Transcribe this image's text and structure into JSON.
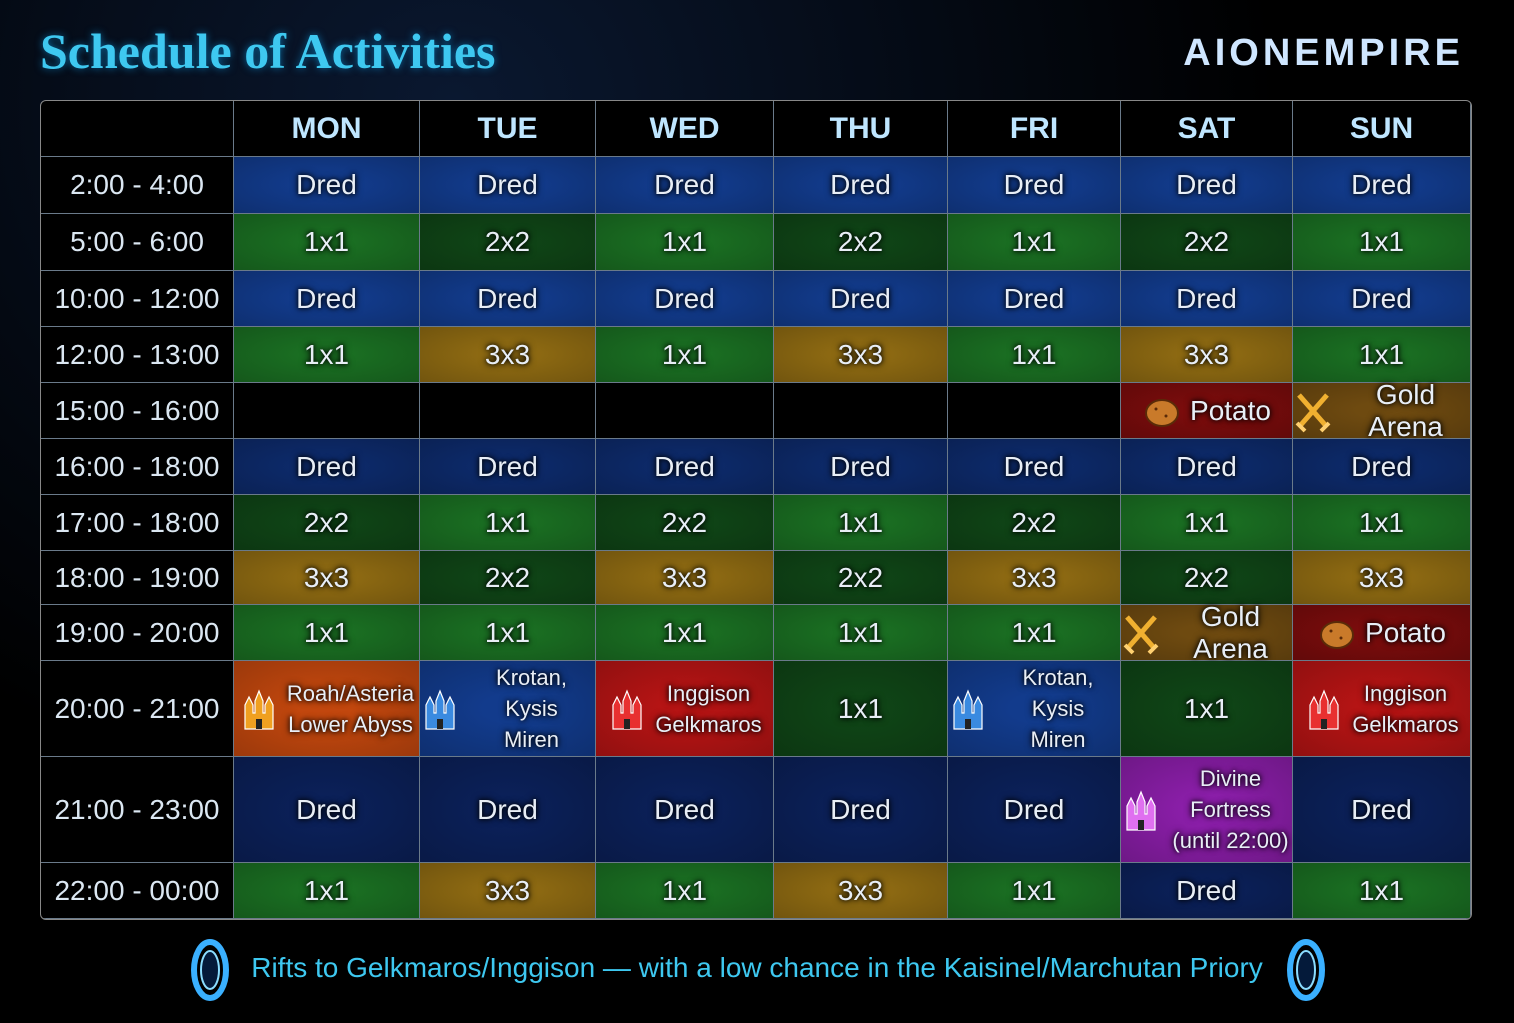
{
  "header": {
    "title": "Schedule of Activities",
    "logo": "AIONEMPIRE"
  },
  "table": {
    "days": [
      "MON",
      "TUE",
      "WED",
      "THU",
      "FRI",
      "SAT",
      "SUN"
    ],
    "rows": [
      {
        "time": "2:00 - 4:00",
        "cells": [
          {
            "text": "Dred",
            "color": "#123b8c"
          },
          {
            "text": "Dred",
            "color": "#123b8c"
          },
          {
            "text": "Dred",
            "color": "#123b8c"
          },
          {
            "text": "Dred",
            "color": "#123b8c"
          },
          {
            "text": "Dred",
            "color": "#123b8c"
          },
          {
            "text": "Dred",
            "color": "#123b8c"
          },
          {
            "text": "Dred",
            "color": "#123b8c"
          }
        ]
      },
      {
        "time": "5:00 - 6:00",
        "cells": [
          {
            "text": "1x1",
            "color": "#1a6e22"
          },
          {
            "text": "2x2",
            "color": "#0f4416"
          },
          {
            "text": "1x1",
            "color": "#1a6e22"
          },
          {
            "text": "2x2",
            "color": "#0f4416"
          },
          {
            "text": "1x1",
            "color": "#1a6e22"
          },
          {
            "text": "2x2",
            "color": "#0f4416"
          },
          {
            "text": "1x1",
            "color": "#1a6e22"
          }
        ]
      },
      {
        "time": "10:00 - 12:00",
        "cells": [
          {
            "text": "Dred",
            "color": "#123b8c"
          },
          {
            "text": "Dred",
            "color": "#123b8c"
          },
          {
            "text": "Dred",
            "color": "#123b8c"
          },
          {
            "text": "Dred",
            "color": "#123b8c"
          },
          {
            "text": "Dred",
            "color": "#123b8c"
          },
          {
            "text": "Dred",
            "color": "#123b8c"
          },
          {
            "text": "Dred",
            "color": "#123b8c"
          }
        ]
      },
      {
        "time": "12:00 - 13:00",
        "cells": [
          {
            "text": "1x1",
            "color": "#1a6e22"
          },
          {
            "text": "3x3",
            "color": "#8e6a12"
          },
          {
            "text": "1x1",
            "color": "#1a6e22"
          },
          {
            "text": "3x3",
            "color": "#8e6a12"
          },
          {
            "text": "1x1",
            "color": "#1a6e22"
          },
          {
            "text": "3x3",
            "color": "#8e6a12"
          },
          {
            "text": "1x1",
            "color": "#1a6e22"
          }
        ]
      },
      {
        "time": "15:00 - 16:00",
        "cells": [
          {
            "color": "#000000"
          },
          {
            "color": "#000000"
          },
          {
            "color": "#000000"
          },
          {
            "color": "#000000"
          },
          {
            "color": "#000000"
          },
          {
            "text": "Potato",
            "color": "#7a0c0c",
            "icon": "potato"
          },
          {
            "text": "Gold Arena",
            "color": "#6e4a10",
            "icon": "swords"
          }
        ]
      },
      {
        "time": "16:00 - 18:00",
        "cells": [
          {
            "text": "Dred",
            "color": "#0d2a6a"
          },
          {
            "text": "Dred",
            "color": "#0d2a6a"
          },
          {
            "text": "Dred",
            "color": "#0d2a6a"
          },
          {
            "text": "Dred",
            "color": "#0d2a6a"
          },
          {
            "text": "Dred",
            "color": "#0d2a6a"
          },
          {
            "text": "Dred",
            "color": "#0d2a6a"
          },
          {
            "text": "Dred",
            "color": "#0d2a6a"
          }
        ]
      },
      {
        "time": "17:00 - 18:00",
        "cells": [
          {
            "text": "2x2",
            "color": "#0f4416"
          },
          {
            "text": "1x1",
            "color": "#1a6e22"
          },
          {
            "text": "2x2",
            "color": "#0f4416"
          },
          {
            "text": "1x1",
            "color": "#1a6e22"
          },
          {
            "text": "2x2",
            "color": "#0f4416"
          },
          {
            "text": "1x1",
            "color": "#1a6e22"
          },
          {
            "text": "1x1",
            "color": "#1a6e22"
          }
        ]
      },
      {
        "time": "18:00 - 19:00",
        "cells": [
          {
            "text": "3x3",
            "color": "#8e6a12"
          },
          {
            "text": "2x2",
            "color": "#0f4416"
          },
          {
            "text": "3x3",
            "color": "#8e6a12"
          },
          {
            "text": "2x2",
            "color": "#0f4416"
          },
          {
            "text": "3x3",
            "color": "#8e6a12"
          },
          {
            "text": "2x2",
            "color": "#0f4416"
          },
          {
            "text": "3x3",
            "color": "#8e6a12"
          }
        ]
      },
      {
        "time": "19:00 - 20:00",
        "cells": [
          {
            "text": "1x1",
            "color": "#1a6e22"
          },
          {
            "text": "1x1",
            "color": "#1a6e22"
          },
          {
            "text": "1x1",
            "color": "#1a6e22"
          },
          {
            "text": "1x1",
            "color": "#1a6e22"
          },
          {
            "text": "1x1",
            "color": "#1a6e22"
          },
          {
            "text": "Gold Arena",
            "color": "#6e4a10",
            "icon": "swords"
          },
          {
            "text": "Potato",
            "color": "#7a0c0c",
            "icon": "potato"
          }
        ]
      },
      {
        "time": "20:00 - 21:00",
        "cells": [
          {
            "lines": [
              "Roah/Asteria",
              "Lower Abyss"
            ],
            "color": "#c2470e",
            "icon": "castle-orange"
          },
          {
            "lines": [
              "Krotan, Kysis",
              "Miren"
            ],
            "color": "#123b8c",
            "icon": "castle-blue"
          },
          {
            "lines": [
              "Inggison",
              "Gelkmaros"
            ],
            "color": "#b51414",
            "icon": "castle-red"
          },
          {
            "text": "1x1",
            "color": "#0f4416"
          },
          {
            "lines": [
              "Krotan, Kysis",
              "Miren"
            ],
            "color": "#123b8c",
            "icon": "castle-blue"
          },
          {
            "text": "1x1",
            "color": "#0f4416"
          },
          {
            "lines": [
              "Inggison",
              "Gelkmaros"
            ],
            "color": "#b51414",
            "icon": "castle-red"
          }
        ]
      },
      {
        "time": "21:00 - 23:00",
        "cells": [
          {
            "text": "Dred",
            "color": "#0b2058"
          },
          {
            "text": "Dred",
            "color": "#0b2058"
          },
          {
            "text": "Dred",
            "color": "#0b2058"
          },
          {
            "text": "Dred",
            "color": "#0b2058"
          },
          {
            "text": "Dred",
            "color": "#0b2058"
          },
          {
            "lines": [
              "Divine Fortress",
              "(until 22:00)"
            ],
            "color": "#8a1ea8",
            "icon": "castle-pink"
          },
          {
            "text": "Dred",
            "color": "#0b2058"
          }
        ]
      },
      {
        "time": "22:00 - 00:00",
        "cells": [
          {
            "text": "1x1",
            "color": "#1a6e22"
          },
          {
            "text": "3x3",
            "color": "#8e6a12"
          },
          {
            "text": "1x1",
            "color": "#1a6e22"
          },
          {
            "text": "3x3",
            "color": "#8e6a12"
          },
          {
            "text": "1x1",
            "color": "#1a6e22"
          },
          {
            "text": "Dred",
            "color": "#0b2058"
          },
          {
            "text": "1x1",
            "color": "#1a6e22"
          }
        ]
      }
    ]
  },
  "footer": "Rifts to Gelkmaros/Inggison — with a low chance in the Kaisinel/Marchutan Priory"
}
